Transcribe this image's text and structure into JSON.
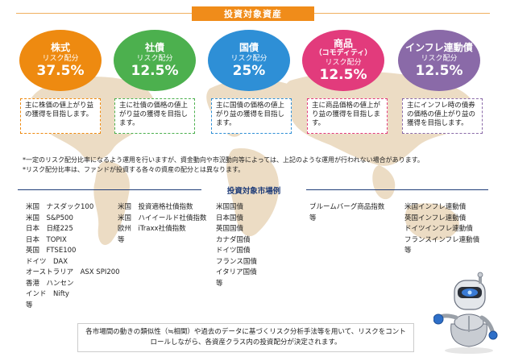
{
  "title": "投資対象資産",
  "assets": [
    {
      "name": "株式",
      "sub": "",
      "label": "リスク配分",
      "percent": "37.5%",
      "color": "#ee8a10",
      "desc": "主に株価の値上がり益の獲得を目指します。"
    },
    {
      "name": "社債",
      "sub": "",
      "label": "リスク配分",
      "percent": "12.5%",
      "color": "#4cb04e",
      "desc": "主に社債の価格の値上がり益の獲得を目指します。"
    },
    {
      "name": "国債",
      "sub": "",
      "label": "リスク配分",
      "percent": "25%",
      "color": "#2e8fd6",
      "desc": "主に国債の価格の値上がり益の獲得を目指します。"
    },
    {
      "name": "商品",
      "sub": "（コモディティ）",
      "label": "リスク配分",
      "percent": "12.5%",
      "color": "#e23b7c",
      "desc": "主に商品価格の値上がり益の獲得を目指します。"
    },
    {
      "name": "インフレ連動債",
      "sub": "",
      "label": "リスク配分",
      "percent": "12.5%",
      "color": "#8a6aa8",
      "desc": "主にインフレ時の債券の価格の値上がり益の獲得を目指します。"
    }
  ],
  "footnotes": [
    "*一定のリスク配分比率になるよう運用を行いますが、資金動向や市況動向等によっては、上記のような運用が行われない場合があります。",
    "*リスク配分比率は、ファンドが投資する各々の資産の配分とは異なります。"
  ],
  "market_title": "投資対象市場例",
  "markets": [
    [
      "米国　ナスダック100",
      "米国　S&P500",
      "日本　日経225",
      "日本　TOPIX",
      "英国　FTSE100",
      "ドイツ　DAX",
      "オーストラリア　ASX SPI200",
      "香港　ハンセン",
      "インド　Nifty",
      "等"
    ],
    [
      "米国　投資適格社債指数",
      "米国　ハイイールド社債指数",
      "欧州　iTraxx社債指数",
      "等"
    ],
    [
      "米国国債",
      "日本国債",
      "英国国債",
      "カナダ国債",
      "ドイツ国債",
      "フランス国債",
      "イタリア国債",
      "等"
    ],
    [
      "ブルームバーグ商品指数",
      "等"
    ],
    [
      "米国インフレ連動債",
      "英国インフレ連動債",
      "ドイツインフレ連動債",
      "フランスインフレ連動債",
      "等"
    ]
  ],
  "bottom_note": "各市場間の動きの類似性（≒相関）や過去のデータに基づくリスク分析手法等を用いて、リスクをコントロールしながら、各資産クラス内の投資配分が決定されます。",
  "colors": {
    "title_bg": "#f08c1a",
    "market_title": "#1f3c78",
    "map": "#ecdcc4"
  }
}
